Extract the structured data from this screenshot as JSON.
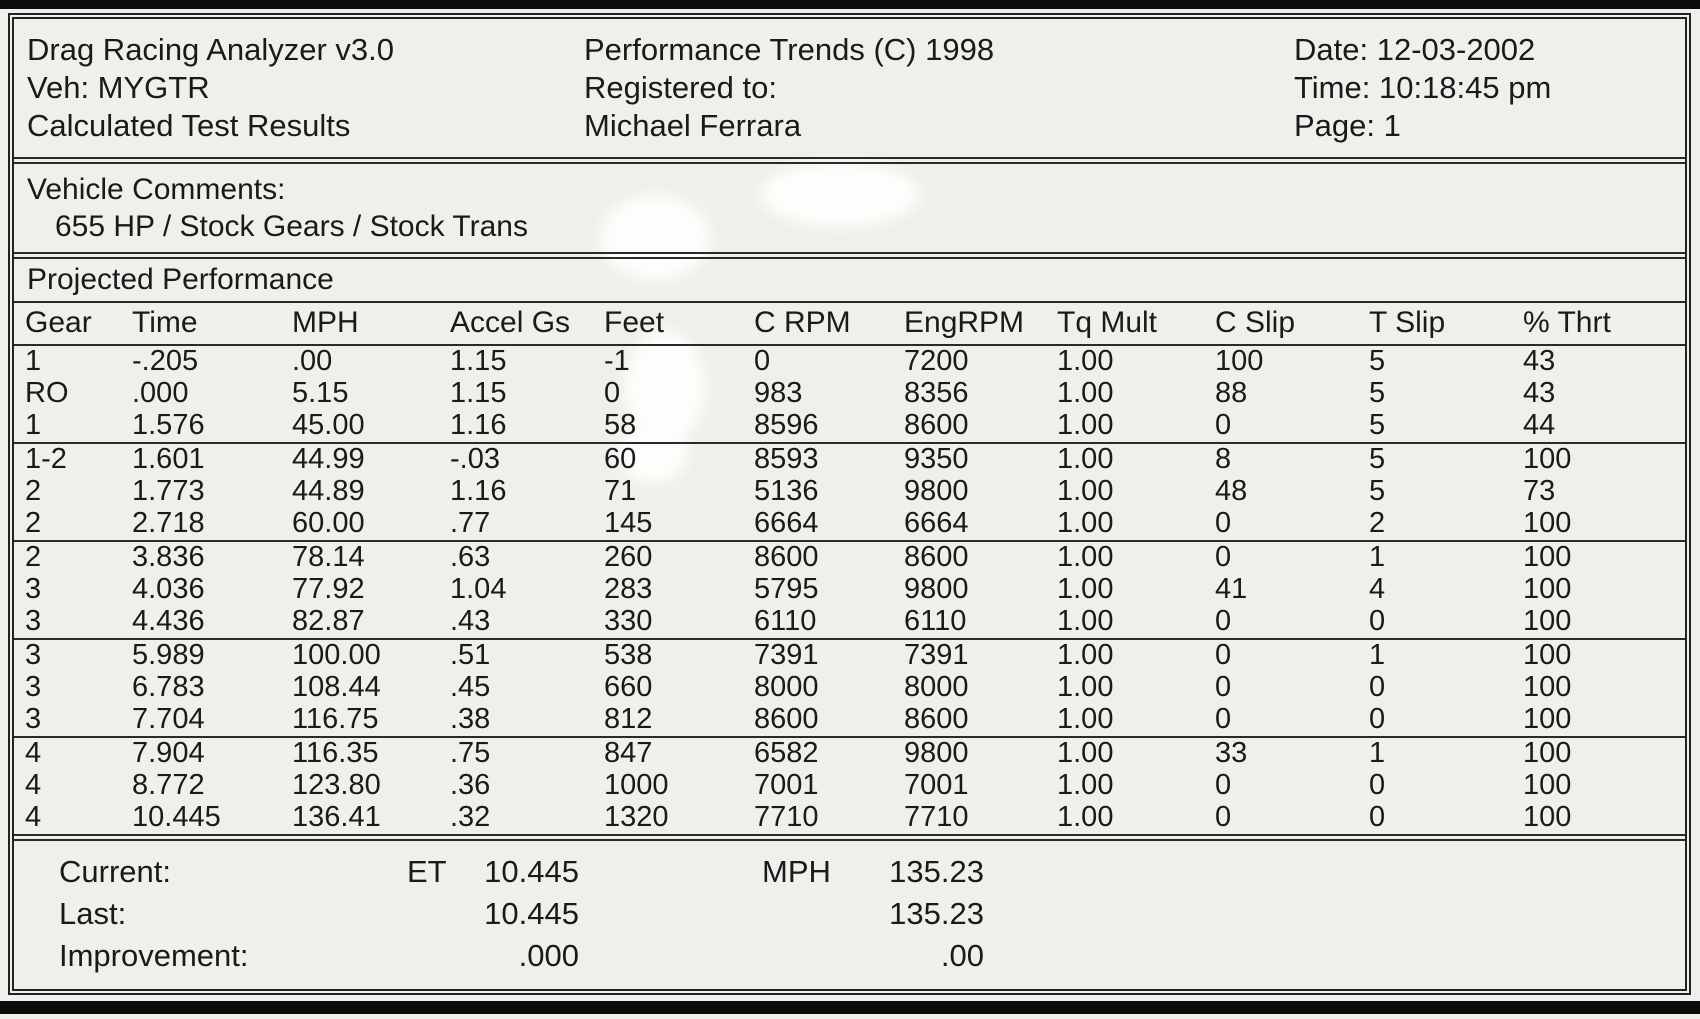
{
  "report": {
    "header": {
      "left": [
        "Drag Racing Analyzer v3.0",
        "Veh: MYGTR",
        "Calculated Test Results"
      ],
      "center": [
        "Performance Trends (C) 1998",
        "Registered to:",
        "Michael Ferrara"
      ],
      "right": [
        "Date: 12-03-2002",
        "Time: 10:18:45 pm",
        "Page: 1"
      ]
    },
    "vehicle_comments": {
      "label": "Vehicle Comments:",
      "comment": "655 HP / Stock Gears / Stock Trans"
    },
    "section_title": "Projected Performance",
    "table": {
      "columns": [
        "Gear",
        "Time",
        "MPH",
        "Accel Gs",
        "Feet",
        "C RPM",
        "EngRPM",
        "Tq Mult",
        "C Slip",
        "T Slip",
        "% Thrt"
      ],
      "row_groups": [
        [
          [
            "1",
            "-.205",
            ".00",
            "1.15",
            "-1",
            "0",
            "7200",
            "1.00",
            "100",
            "5",
            "43"
          ],
          [
            "RO",
            ".000",
            "5.15",
            "1.15",
            "0",
            "983",
            "8356",
            "1.00",
            "88",
            "5",
            "43"
          ],
          [
            "1",
            "1.576",
            "45.00",
            "1.16",
            "58",
            "8596",
            "8600",
            "1.00",
            "0",
            "5",
            "44"
          ]
        ],
        [
          [
            "1-2",
            "1.601",
            "44.99",
            "-.03",
            "60",
            "8593",
            "9350",
            "1.00",
            "8",
            "5",
            "100"
          ],
          [
            "2",
            "1.773",
            "44.89",
            "1.16",
            "71",
            "5136",
            "9800",
            "1.00",
            "48",
            "5",
            "73"
          ],
          [
            "2",
            "2.718",
            "60.00",
            ".77",
            "145",
            "6664",
            "6664",
            "1.00",
            "0",
            "2",
            "100"
          ]
        ],
        [
          [
            "2",
            "3.836",
            "78.14",
            ".63",
            "260",
            "8600",
            "8600",
            "1.00",
            "0",
            "1",
            "100"
          ],
          [
            "3",
            "4.036",
            "77.92",
            "1.04",
            "283",
            "5795",
            "9800",
            "1.00",
            "41",
            "4",
            "100"
          ],
          [
            "3",
            "4.436",
            "82.87",
            ".43",
            "330",
            "6110",
            "6110",
            "1.00",
            "0",
            "0",
            "100"
          ]
        ],
        [
          [
            "3",
            "5.989",
            "100.00",
            ".51",
            "538",
            "7391",
            "7391",
            "1.00",
            "0",
            "1",
            "100"
          ],
          [
            "3",
            "6.783",
            "108.44",
            ".45",
            "660",
            "8000",
            "8000",
            "1.00",
            "0",
            "0",
            "100"
          ],
          [
            "3",
            "7.704",
            "116.75",
            ".38",
            "812",
            "8600",
            "8600",
            "1.00",
            "0",
            "0",
            "100"
          ]
        ],
        [
          [
            "4",
            "7.904",
            "116.35",
            ".75",
            "847",
            "6582",
            "9800",
            "1.00",
            "33",
            "1",
            "100"
          ],
          [
            "4",
            "8.772",
            "123.80",
            ".36",
            "1000",
            "7001",
            "7001",
            "1.00",
            "0",
            "0",
            "100"
          ],
          [
            "4",
            "10.445",
            "136.41",
            ".32",
            "1320",
            "7710",
            "7710",
            "1.00",
            "0",
            "0",
            "100"
          ]
        ]
      ]
    },
    "summary": {
      "rows": [
        {
          "label": "Current:",
          "et_label": "ET",
          "et_value": "10.445",
          "mph_label": "MPH",
          "mph_value": "135.23"
        },
        {
          "label": "Last:",
          "et_label": "",
          "et_value": "10.445",
          "mph_label": "",
          "mph_value": "135.23"
        },
        {
          "label": "Improvement:",
          "et_label": "",
          "et_value": ".000",
          "mph_label": "",
          "mph_value": ".00"
        }
      ]
    },
    "ink_color": "#1a1a1a",
    "paper_color": "#f0efeb"
  }
}
